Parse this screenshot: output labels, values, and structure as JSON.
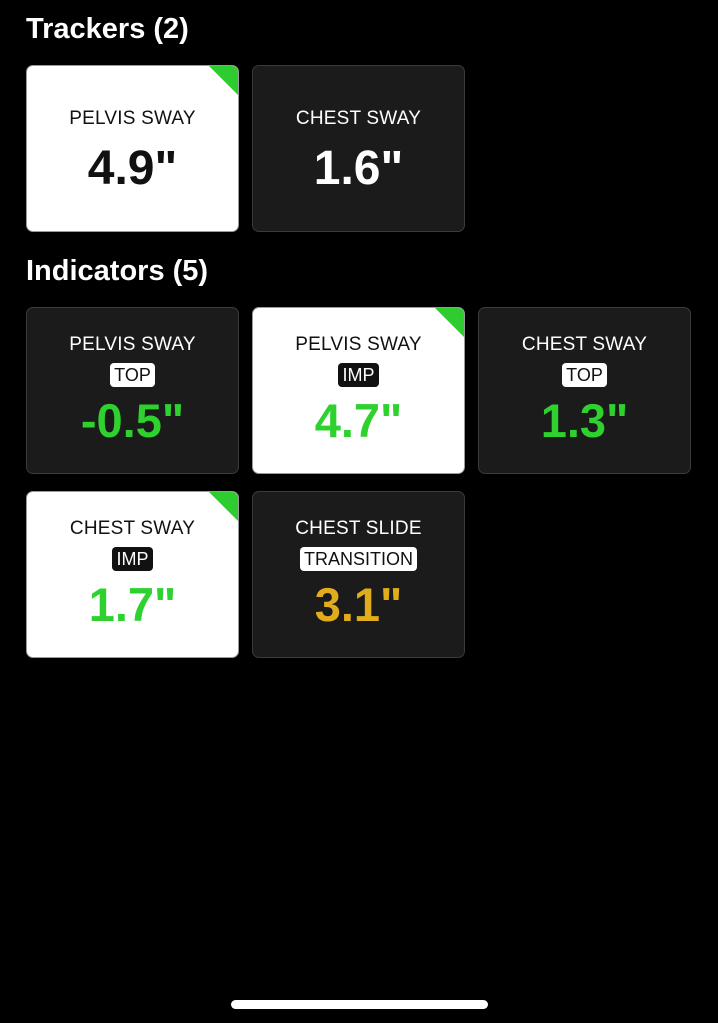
{
  "trackers": {
    "title": "Trackers (2)",
    "cards": [
      {
        "label": "PELVIS SWAY",
        "value": "4.9\"",
        "selected": true
      },
      {
        "label": "CHEST SWAY",
        "value": "1.6\"",
        "selected": false
      }
    ]
  },
  "indicators": {
    "title": "Indicators (5)",
    "cards": [
      {
        "label": "PELVIS SWAY",
        "tag": "TOP",
        "value": "-0.5\"",
        "value_color": "#2ed12e",
        "selected": false
      },
      {
        "label": "PELVIS SWAY",
        "tag": "IMP",
        "value": "4.7\"",
        "value_color": "#2ed12e",
        "selected": true
      },
      {
        "label": "CHEST SWAY",
        "tag": "TOP",
        "value": "1.3\"",
        "value_color": "#2ed12e",
        "selected": false
      },
      {
        "label": "CHEST SWAY",
        "tag": "IMP",
        "value": "1.7\"",
        "value_color": "#2ed12e",
        "selected": true
      },
      {
        "label": "CHEST SLIDE",
        "tag": "TRANSITION",
        "value": "3.1\"",
        "value_color": "#e2ad1c",
        "selected": false
      }
    ]
  },
  "colors": {
    "background": "#000000",
    "card_dark": "#1b1b1b",
    "selected_corner": "#2ecc2e",
    "good_value": "#2ed12e",
    "warn_value": "#e2ad1c"
  }
}
